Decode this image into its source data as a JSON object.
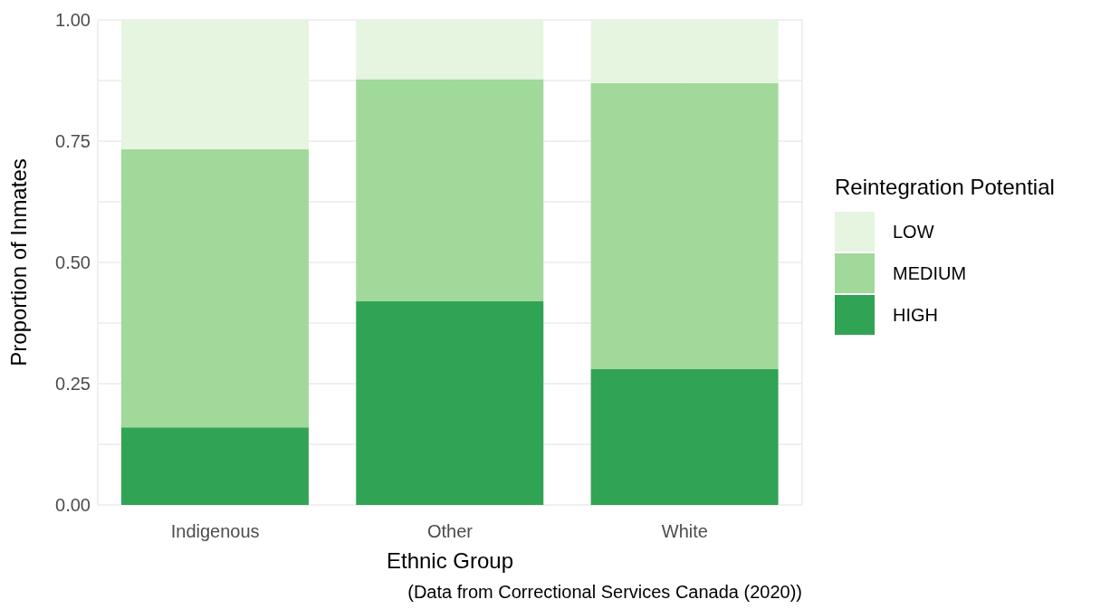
{
  "chart_data": {
    "type": "bar",
    "stacked": true,
    "xlabel": "Ethnic Group",
    "ylabel": "Proportion of Inmates",
    "legend_title": "Reintegration Potential",
    "annotations": [
      "(Data from Correctional Services Canada (2020))"
    ],
    "categories": [
      "Indigenous",
      "Other",
      "White"
    ],
    "series": [
      {
        "name": "HIGH",
        "color": "#31a354",
        "values": [
          0.16,
          0.42,
          0.28
        ]
      },
      {
        "name": "MEDIUM",
        "color": "#a1d99b",
        "values": [
          0.573,
          0.458,
          0.59
        ]
      },
      {
        "name": "LOW",
        "color": "#e5f5e0",
        "values": [
          0.267,
          0.122,
          0.13
        ]
      }
    ],
    "ylim": [
      0,
      1
    ],
    "yticks": [
      {
        "value": 0,
        "label": "0.00"
      },
      {
        "value": 0.125,
        "label": null
      },
      {
        "value": 0.25,
        "label": "0.25"
      },
      {
        "value": 0.375,
        "label": null
      },
      {
        "value": 0.5,
        "label": "0.50"
      },
      {
        "value": 0.625,
        "label": null
      },
      {
        "value": 0.75,
        "label": "0.75"
      },
      {
        "value": 0.875,
        "label": null
      },
      {
        "value": 1,
        "label": "1.00"
      }
    ],
    "grid": true,
    "legend": "right"
  }
}
